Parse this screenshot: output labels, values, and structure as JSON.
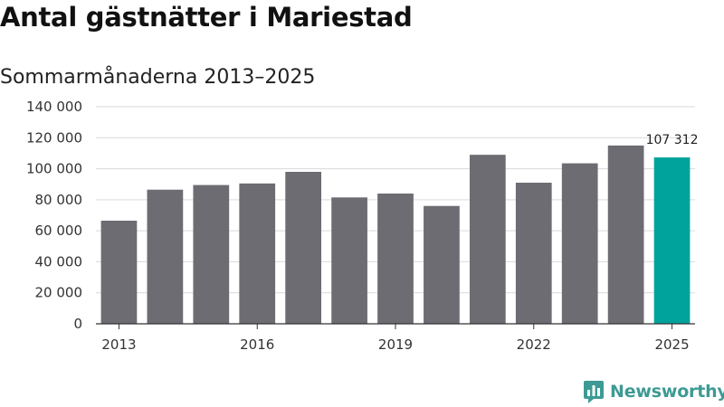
{
  "header": {
    "title": "Antal gästnätter i Mariestad",
    "subtitle": "Sommarmånaderna 2013–2025"
  },
  "brand": {
    "name": "Newsworthy",
    "icon": "newsworthy-logo-icon",
    "color": "#3d9a94"
  },
  "colors": {
    "bar": "#6d6c72",
    "highlight": "#00a39b",
    "grid": "#d9d9d9",
    "axis": "#333333"
  },
  "chart_data": {
    "type": "bar",
    "categories": [
      "2013",
      "2014",
      "2015",
      "2016",
      "2017",
      "2018",
      "2019",
      "2020",
      "2021",
      "2022",
      "2023",
      "2024",
      "2025"
    ],
    "values": [
      66500,
      86500,
      89500,
      90500,
      98000,
      81500,
      84000,
      76000,
      109000,
      91000,
      103500,
      115000,
      107312
    ],
    "highlight_index": 12,
    "data_labels": [
      {
        "index": 12,
        "text": "107 312"
      }
    ],
    "x_tick_labels": [
      "2013",
      "2016",
      "2019",
      "2022",
      "2025"
    ],
    "y_ticks": [
      0,
      20000,
      40000,
      60000,
      80000,
      100000,
      120000,
      140000
    ],
    "y_tick_labels": [
      "0",
      "20 000",
      "40 000",
      "60 000",
      "80 000",
      "100 000",
      "120 000",
      "140 000"
    ],
    "ylim": [
      0,
      140000
    ],
    "title": "Antal gästnätter i Mariestad",
    "subtitle": "Sommarmånaderna 2013–2025",
    "xlabel": "",
    "ylabel": "",
    "grid": true,
    "legend": "none"
  }
}
